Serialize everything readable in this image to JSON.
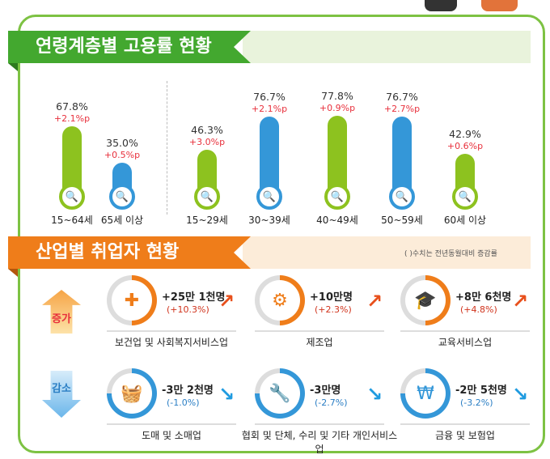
{
  "section1": {
    "title": "연령계층별 고용률 현황"
  },
  "colors": {
    "green": "#8dc21f",
    "blue": "#3497d8",
    "red": "#e8303c",
    "orange": "#ef7d1a",
    "header_green": "#43a82f"
  },
  "chart_data": {
    "type": "bar",
    "categories": [
      "15~64세",
      "65세 이상",
      "15~29세",
      "30~39세",
      "40~49세",
      "50~59세",
      "60세 이상"
    ],
    "values": [
      67.8,
      35.0,
      46.3,
      76.7,
      77.8,
      76.7,
      42.9
    ],
    "value_labels": [
      "67.8%",
      "35.0%",
      "46.3%",
      "76.7%",
      "77.8%",
      "76.7%",
      "42.9%"
    ],
    "changes": [
      "+2.1%p",
      "+0.5%p",
      "+3.0%p",
      "+2.1%p",
      "+0.9%p",
      "+2.7%p",
      "+0.6%p"
    ],
    "bar_colors": [
      "green",
      "blue",
      "green",
      "blue",
      "green",
      "blue",
      "green"
    ],
    "unit": "%"
  },
  "section2": {
    "title": "산업별 취업자 현황",
    "note": "( )수치는 전년동월대비 증감률",
    "increase_label": "증가",
    "decrease_label": "감소",
    "increase": [
      {
        "name": "보건업 및 사회복지서비스업",
        "value": "+25만 1천명",
        "pct": "(+10.3%)",
        "icon": "medical-kit-icon"
      },
      {
        "name": "제조업",
        "value": "+10만명",
        "pct": "(+2.3%)",
        "icon": "gears-icon"
      },
      {
        "name": "교육서비스업",
        "value": "+8만 6천명",
        "pct": "(+4.8%)",
        "icon": "graduation-cap-icon"
      }
    ],
    "decrease": [
      {
        "name": "도매 및 소매업",
        "value": "-3만 2천명",
        "pct": "(-1.0%)",
        "icon": "basket-icon"
      },
      {
        "name": "협회 및 단체, 수리 및 기타 개인서비스업",
        "value": "-3만명",
        "pct": "(-2.7%)",
        "icon": "wrench-icon"
      },
      {
        "name": "금융 및 보험업",
        "value": "-2만 5천명",
        "pct": "(-3.2%)",
        "icon": "laptop-won-icon"
      }
    ]
  }
}
